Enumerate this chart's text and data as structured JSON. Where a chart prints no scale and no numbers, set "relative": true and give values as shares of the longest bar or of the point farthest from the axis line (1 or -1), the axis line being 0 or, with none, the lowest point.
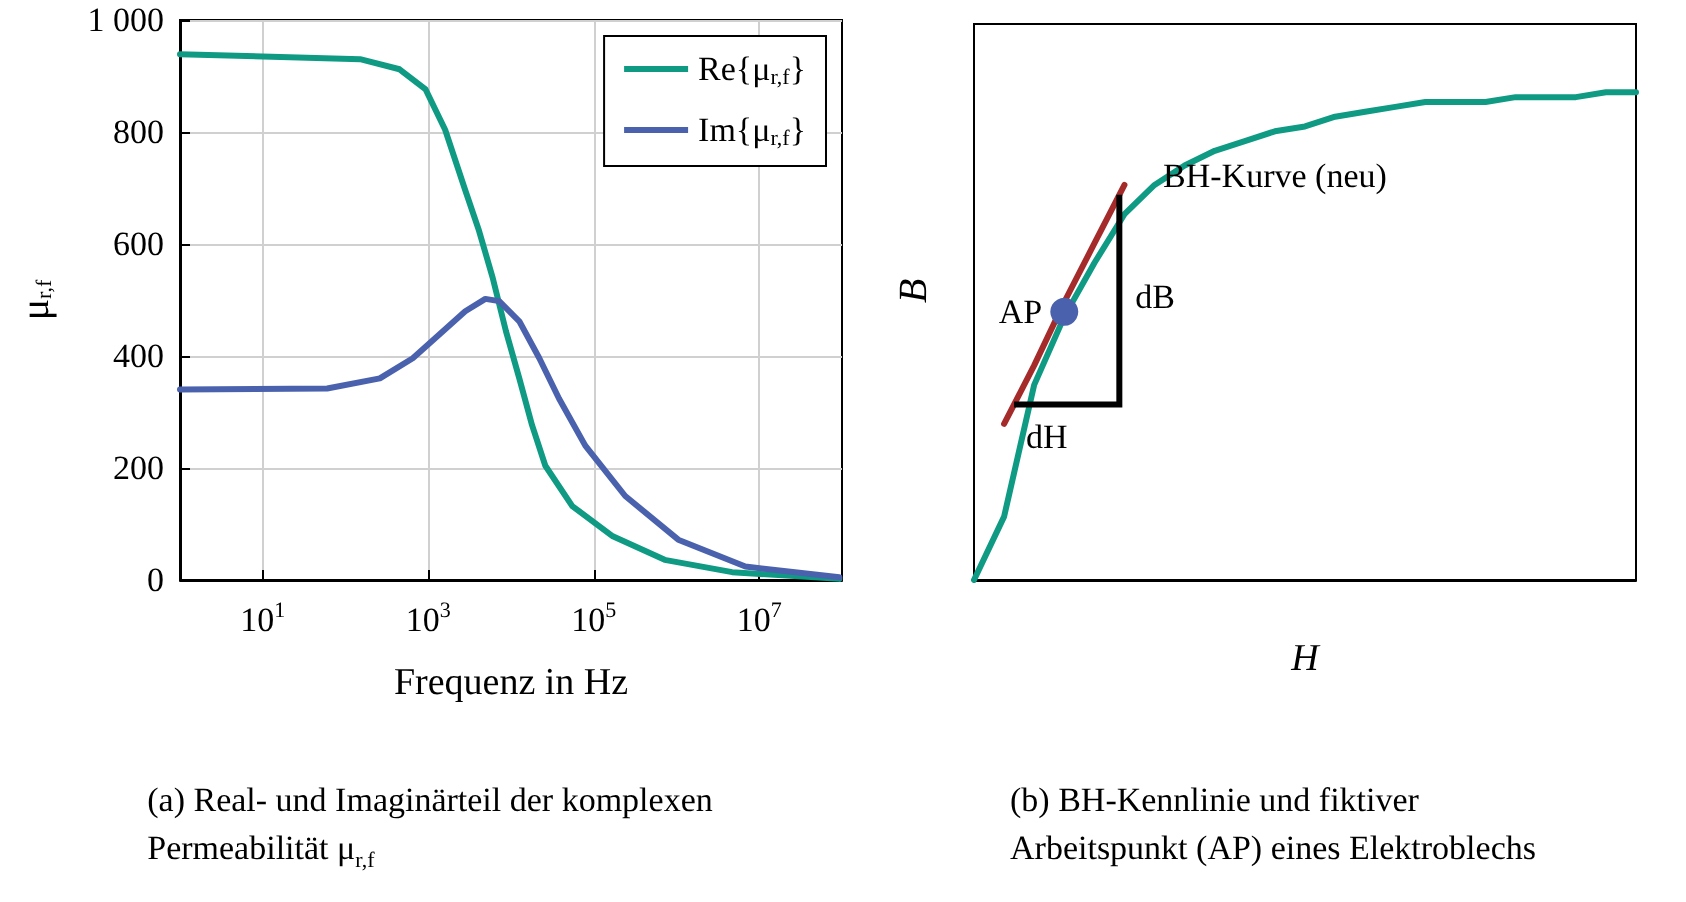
{
  "chart_data": [
    {
      "type": "line",
      "xlabel": "Frequenz in Hz",
      "ylabel": "μ$_{r,f}$",
      "log": "x",
      "xlim": [
        1,
        100000000
      ],
      "xticks": [
        {
          "value": 10,
          "label": "10$^{1}$"
        },
        {
          "value": 1000,
          "label": "10$^{3}$"
        },
        {
          "value": 100000,
          "label": "10$^{5}$"
        },
        {
          "value": 10000000,
          "label": "10$^{7}$"
        }
      ],
      "ylim": [
        0,
        1000
      ],
      "yticks": [
        0,
        200,
        400,
        600,
        800,
        {
          "value": 1000,
          "label": "1 000"
        }
      ],
      "grid": true,
      "legend": "top right",
      "series": [
        {
          "name": "Re{μ$_{r,f}$}",
          "color": "#0f9a84",
          "x": [
            1,
            150,
            450,
            930,
            1600,
            2800,
            4100,
            6000,
            8700,
            12600,
            18000,
            26000,
            55000,
            170000,
            720000,
            4700000,
            93000000
          ],
          "values": [
            939,
            930,
            912,
            876,
            804,
            696,
            624,
            540,
            444,
            360,
            276,
            204,
            132,
            78,
            36,
            14,
            2
          ]
        },
        {
          "name": "Im{μ$_{r,f}$}",
          "color": "#4a62ad",
          "x": [
            1,
            60,
            260,
            650,
            1350,
            2800,
            4900,
            7200,
            12600,
            22000,
            38000,
            79000,
            240000,
            1050000,
            6800000,
            93000000
          ],
          "values": [
            340,
            342,
            360,
            396,
            438,
            480,
            502,
            498,
            462,
            396,
            324,
            240,
            150,
            72,
            24,
            5
          ]
        }
      ],
      "annotations": [
        "(a) Real- und Imaginärteil der komplexen\nPermeabilität μ$_{r,f}$"
      ]
    },
    {
      "type": "line",
      "xlabel": "H",
      "ylabel": "B",
      "relative": true,
      "grid": false,
      "categories": [
        null,
        null,
        null,
        null,
        null,
        null,
        null,
        null,
        null,
        null,
        null,
        null,
        null,
        null,
        null,
        null,
        null,
        null,
        null,
        null,
        null,
        null,
        null
      ],
      "series": [
        {
          "name": "BH-Kurve (neu)",
          "color": "#0f9a84",
          "values": [
            0,
            0.13,
            0.4,
            0.54,
            0.65,
            0.75,
            0.81,
            0.85,
            0.88,
            0.9,
            0.92,
            0.93,
            0.95,
            0.96,
            0.97,
            0.98,
            0.98,
            0.98,
            0.99,
            0.99,
            0.99,
            1.0,
            1.0
          ]
        },
        {
          "color": "#a52a2a",
          "values": [
            null,
            0.32,
            0.44,
            0.57,
            0.69,
            0.81,
            null,
            null,
            null,
            null,
            null,
            null,
            null,
            null,
            null,
            null,
            null,
            null,
            null,
            null,
            null,
            null,
            null
          ]
        },
        {
          "name": "AP",
          "marker": "circle",
          "color": "#4a62ad",
          "values": [
            null,
            null,
            null,
            0.55,
            null,
            null,
            null,
            null,
            null,
            null,
            null,
            null,
            null,
            null,
            null,
            null,
            null,
            null,
            null,
            null,
            null,
            null,
            null
          ]
        }
      ],
      "annotations": [
        "dB",
        "dH",
        "(b) BH-Kennlinie und fiktiver\nArbeitspunkt (AP) eines Elektroblechs"
      ]
    }
  ]
}
